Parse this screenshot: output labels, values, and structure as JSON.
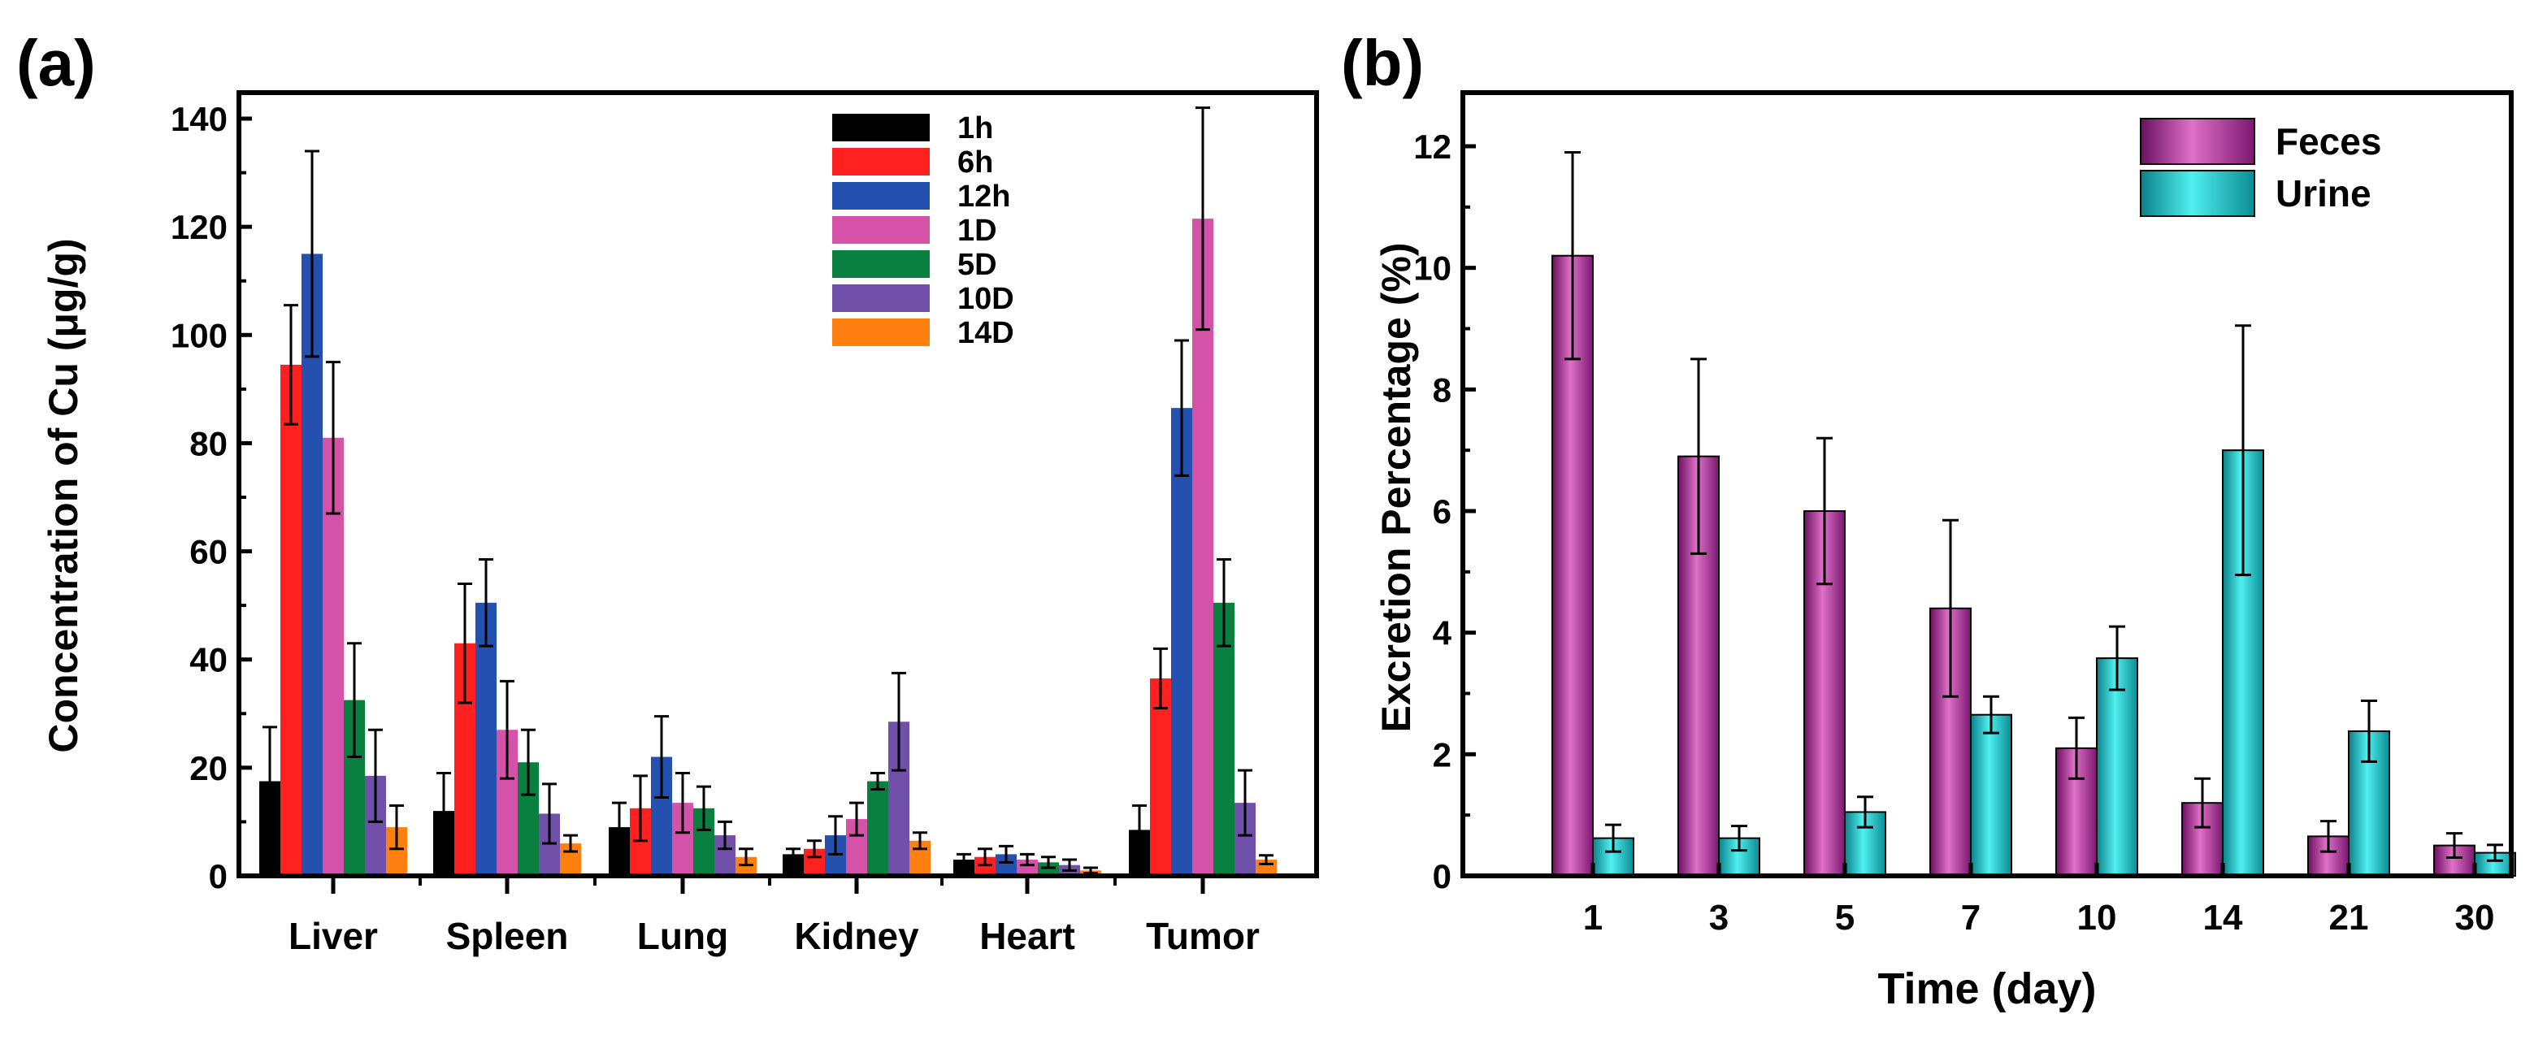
{
  "chart_data": [
    {
      "panel_label": "(a)",
      "type": "bar",
      "title": "",
      "xlabel": "",
      "ylabel": "Concentration of Cu (μg/g)",
      "ylim": [
        0,
        140
      ],
      "yticks": [
        0,
        20,
        40,
        60,
        80,
        100,
        120,
        140
      ],
      "grid": false,
      "legend_position": "top-center",
      "categories": [
        "Liver",
        "Spleen",
        "Lung",
        "Kidney",
        "Heart",
        "Tumor"
      ],
      "series": [
        {
          "name": "1h",
          "color": "#000000",
          "values": [
            17.5,
            12,
            9,
            4,
            3,
            8.5
          ],
          "errors": [
            10,
            7,
            4.5,
            1,
            1,
            4.5
          ]
        },
        {
          "name": "6h",
          "color": "#ff2020",
          "values": [
            94.5,
            43,
            12.5,
            5,
            3.5,
            36.5
          ],
          "errors": [
            11,
            11,
            6,
            1.5,
            1.5,
            5.5
          ]
        },
        {
          "name": "12h",
          "color": "#2450b0",
          "values": [
            115,
            50.5,
            22,
            7.5,
            4,
            86.5
          ],
          "errors": [
            19,
            8,
            7.5,
            3.5,
            1.5,
            12.5
          ]
        },
        {
          "name": "1D",
          "color": "#d452a8",
          "values": [
            81,
            27,
            13.5,
            10.5,
            3,
            121.5
          ],
          "errors": [
            14,
            9,
            5.5,
            3,
            1,
            20.5
          ]
        },
        {
          "name": "5D",
          "color": "#0a8040",
          "values": [
            32.5,
            21,
            12.5,
            17.5,
            2.5,
            50.5
          ],
          "errors": [
            10.5,
            6,
            4,
            1.5,
            1,
            8
          ]
        },
        {
          "name": "10D",
          "color": "#7050a8",
          "values": [
            18.5,
            11.5,
            7.5,
            28.5,
            2,
            13.5
          ],
          "errors": [
            8.5,
            5.5,
            2.5,
            9,
            1,
            6
          ]
        },
        {
          "name": "14D",
          "color": "#ff8010",
          "values": [
            9,
            6,
            3.5,
            6.5,
            1,
            3
          ],
          "errors": [
            4,
            1.5,
            1.5,
            1.5,
            0.5,
            0.8
          ]
        }
      ]
    },
    {
      "panel_label": "(b)",
      "type": "bar",
      "title": "",
      "xlabel": "Time (day)",
      "ylabel": "Excretion Percentage (%)",
      "ylim": [
        0,
        12.9
      ],
      "yticks": [
        0,
        2,
        4,
        6,
        8,
        10,
        12
      ],
      "grid": false,
      "legend_position": "top-right",
      "categories": [
        "1",
        "3",
        "5",
        "7",
        "10",
        "14",
        "21",
        "30"
      ],
      "series": [
        {
          "name": "Feces",
          "color": "#b0309a",
          "values": [
            10.2,
            6.9,
            6.0,
            4.4,
            2.1,
            1.2,
            0.65,
            0.5
          ],
          "errors": [
            1.7,
            1.6,
            1.2,
            1.45,
            0.5,
            0.4,
            0.25,
            0.2
          ]
        },
        {
          "name": "Urine",
          "color": "#20c0c8",
          "values": [
            0.62,
            0.62,
            1.05,
            2.65,
            3.58,
            7.0,
            2.38,
            0.38
          ],
          "errors": [
            0.22,
            0.2,
            0.25,
            0.3,
            0.52,
            2.05,
            0.5,
            0.13
          ]
        }
      ]
    }
  ]
}
